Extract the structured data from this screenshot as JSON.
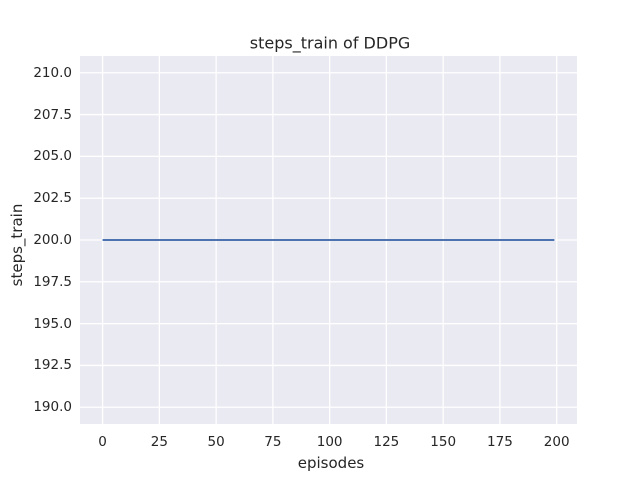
{
  "chart_data": {
    "type": "line",
    "title": "steps_train of DDPG",
    "xlabel": "episodes",
    "ylabel": "steps_train",
    "xlim": [
      -9.95,
      208.95
    ],
    "ylim": [
      189,
      211
    ],
    "xticks": [
      0,
      25,
      50,
      75,
      100,
      125,
      150,
      175,
      200
    ],
    "xtick_labels": [
      "0",
      "25",
      "50",
      "75",
      "100",
      "125",
      "150",
      "175",
      "200"
    ],
    "yticks": [
      190.0,
      192.5,
      195.0,
      197.5,
      200.0,
      202.5,
      205.0,
      207.5,
      210.0
    ],
    "ytick_labels": [
      "190.0",
      "192.5",
      "195.0",
      "197.5",
      "200.0",
      "202.5",
      "205.0",
      "207.5",
      "210.0"
    ],
    "grid": true,
    "legend_visible": false,
    "series": [
      {
        "name": "steps_train",
        "x": [
          0,
          199
        ],
        "y": [
          200,
          200
        ],
        "color": "#4c72b0",
        "linewidth": 2
      }
    ],
    "style": {
      "figure_background": "#ffffff",
      "axes_background": "#eaeaf2",
      "grid_color": "#ffffff",
      "text_color": "#262626"
    }
  }
}
